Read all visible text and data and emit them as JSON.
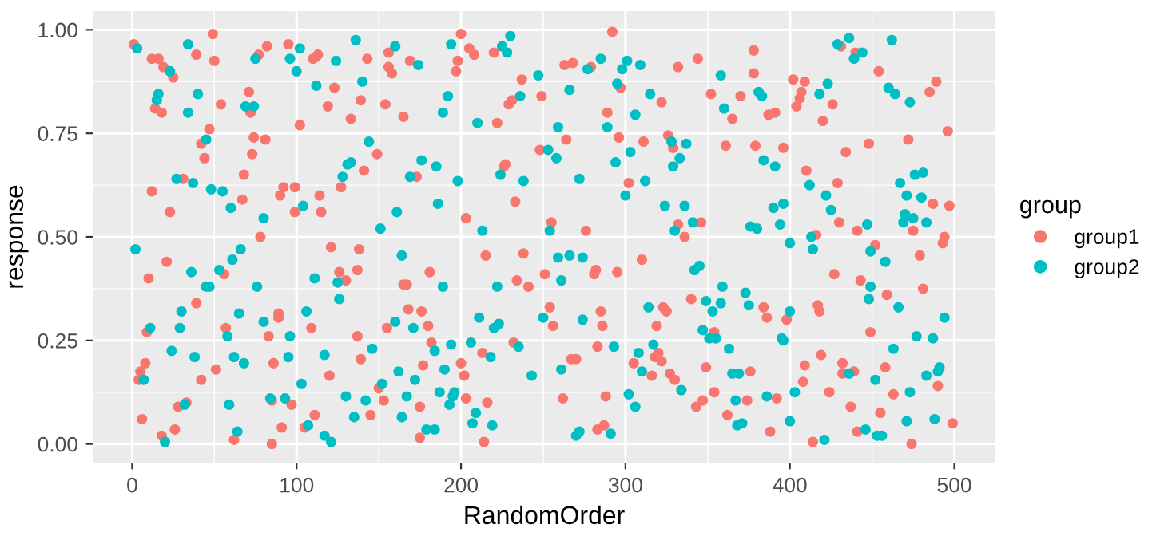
{
  "chart_data": {
    "type": "scatter",
    "xlabel": "RandomOrder",
    "ylabel": "response",
    "legend_title": "group",
    "legend": "right",
    "grid": true,
    "marker": "circle",
    "xlim": [
      -24,
      525
    ],
    "ylim": [
      -0.045,
      1.045
    ],
    "xticks": [
      0,
      100,
      200,
      300,
      400,
      500
    ],
    "yticks": [
      {
        "value": 0,
        "label": "0.00"
      },
      {
        "value": 0.25,
        "label": "0.25"
      },
      {
        "value": 0.5,
        "label": "0.50"
      },
      {
        "value": 0.75,
        "label": "0.75"
      },
      {
        "value": 1,
        "label": "1.00"
      }
    ],
    "series": [
      {
        "name": "group1",
        "color": "#f8766d",
        "x": [
          1,
          49,
          12,
          16,
          19,
          25,
          14,
          18,
          50,
          39,
          47,
          42,
          44,
          54,
          12,
          23,
          21,
          31,
          10,
          9,
          8,
          5,
          4,
          6,
          18,
          26,
          28,
          33,
          39,
          42,
          51,
          56,
          57,
          62,
          67,
          68,
          71,
          72,
          73,
          74,
          77,
          82,
          81,
          78,
          83,
          86,
          85,
          85,
          89,
          89,
          91,
          90,
          92,
          95,
          99,
          99,
          102,
          97,
          110,
          113,
          112,
          109,
          111,
          105,
          114,
          115,
          119,
          123,
          121,
          120,
          126,
          127,
          130,
          133,
          139,
          137,
          137,
          139,
          143,
          141,
          138,
          149,
          145,
          150,
          153,
          154,
          156,
          158,
          156,
          155,
          165,
          167,
          165,
          168,
          169,
          173,
          175,
          176,
          177,
          180,
          182,
          181,
          175,
          197,
          198,
          200,
          205,
          208,
          203,
          215,
          213,
          202,
          200,
          203,
          216,
          214,
          220,
          222,
          227,
          226,
          229,
          231,
          233,
          234,
          232,
          237,
          238,
          249,
          248,
          241,
          251,
          254,
          255,
          256,
          262,
          263,
          264,
          268,
          267,
          270,
          279,
          276,
          281,
          282,
          283,
          285,
          286,
          289,
          292,
          296,
          297,
          295,
          288,
          283,
          287,
          302,
          305,
          311,
          310,
          316,
          323,
          325,
          319,
          318,
          320,
          322,
          322,
          326,
          332,
          329,
          332,
          336,
          327,
          330,
          344,
          346,
          340,
          343,
          347,
          349,
          354,
          354,
          352,
          361,
          365,
          370,
          362,
          374,
          376,
          384,
          386,
          388,
          378,
          378,
          379,
          387,
          391,
          396,
          398,
          392,
          402,
          404,
          406,
          407,
          409,
          410,
          416,
          417,
          418,
          409,
          408,
          414,
          420,
          426,
          419,
          424,
          427,
          429,
          430,
          431,
          432,
          432,
          434,
          437,
          439,
          440,
          441,
          443,
          441,
          448,
          449,
          452,
          454,
          455,
          458,
          459,
          463,
          472,
          474,
          475,
          479,
          481,
          485,
          489,
          487,
          490,
          494,
          493,
          496,
          497,
          499
        ],
        "values": [
          0.965,
          0.99,
          0.93,
          0.93,
          0.91,
          0.885,
          0.81,
          0.8,
          0.925,
          0.94,
          0.76,
          0.725,
          0.69,
          0.82,
          0.61,
          0.56,
          0.44,
          0.64,
          0.4,
          0.27,
          0.195,
          0.175,
          0.155,
          0.06,
          0.02,
          0.035,
          0.09,
          0.1,
          0.34,
          0.155,
          0.18,
          0.41,
          0.28,
          0.01,
          0.59,
          0.65,
          0.85,
          0.8,
          0.7,
          0.74,
          0.94,
          0.96,
          0.735,
          0.5,
          0.26,
          0.195,
          0.105,
          0.0,
          0.305,
          0.315,
          0.04,
          0.6,
          0.62,
          0.965,
          0.62,
          0.56,
          0.77,
          0.095,
          0.93,
          0.94,
          0.935,
          0.28,
          0.07,
          0.04,
          0.6,
          0.56,
          0.815,
          0.86,
          0.475,
          0.165,
          0.415,
          0.62,
          0.395,
          0.785,
          0.83,
          0.42,
          0.26,
          0.205,
          0.93,
          0.66,
          0.47,
          0.7,
          0.07,
          0.135,
          0.105,
          0.82,
          0.91,
          0.895,
          0.945,
          0.28,
          0.385,
          0.385,
          0.79,
          0.325,
          0.925,
          0.645,
          0.09,
          0.32,
          0.19,
          0.285,
          0.245,
          0.415,
          0.015,
          0.9,
          0.925,
          0.99,
          0.955,
          0.94,
          0.545,
          0.455,
          0.22,
          0.165,
          0.195,
          0.11,
          0.1,
          0.005,
          0.945,
          0.775,
          0.675,
          0.67,
          0.82,
          0.83,
          0.585,
          0.395,
          0.245,
          0.88,
          0.46,
          0.84,
          0.71,
          0.38,
          0.41,
          0.33,
          0.535,
          0.285,
          0.11,
          0.915,
          0.735,
          0.92,
          0.205,
          0.205,
          0.91,
          0.515,
          0.41,
          0.42,
          0.235,
          0.32,
          0.285,
          0.8,
          0.995,
          0.74,
          0.86,
          0.415,
          0.115,
          0.035,
          0.045,
          0.63,
          0.195,
          0.73,
          0.445,
          0.165,
          0.33,
          0.32,
          0.285,
          0.21,
          0.22,
          0.2,
          0.825,
          0.745,
          0.91,
          0.715,
          0.53,
          0.5,
          0.17,
          0.155,
          0.93,
          0.535,
          0.35,
          0.09,
          0.105,
          0.185,
          0.27,
          0.125,
          0.845,
          0.72,
          0.785,
          0.84,
          0.07,
          0.105,
          0.175,
          0.33,
          0.305,
          0.03,
          0.95,
          0.895,
          0.72,
          0.795,
          0.8,
          0.715,
          0.3,
          0.11,
          0.88,
          0.815,
          0.835,
          0.85,
          0.875,
          0.66,
          0.505,
          0.335,
          0.32,
          0.19,
          0.15,
          0.005,
          0.78,
          0.82,
          0.215,
          0.125,
          0.41,
          0.63,
          0.535,
          0.96,
          0.195,
          0.17,
          0.705,
          0.09,
          0.175,
          0.945,
          0.515,
          0.395,
          0.03,
          0.725,
          0.27,
          0.48,
          0.9,
          0.075,
          0.185,
          0.36,
          0.12,
          0.735,
          0.0,
          0.515,
          0.455,
          0.375,
          0.85,
          0.875,
          0.58,
          0.14,
          0.5,
          0.485,
          0.755,
          0.575,
          0.05
        ]
      },
      {
        "name": "group2",
        "color": "#00bfc4",
        "x": [
          3,
          2,
          7,
          11,
          15,
          16,
          23,
          27,
          29,
          30,
          32,
          20,
          24,
          34,
          34,
          36,
          37,
          38,
          40,
          45,
          47,
          45,
          48,
          55,
          60,
          61,
          66,
          53,
          59,
          58,
          62,
          64,
          65,
          68,
          69,
          74,
          75,
          76,
          80,
          80,
          84,
          93,
          95,
          96,
          96,
          100,
          102,
          104,
          103,
          106,
          107,
          111,
          112,
          117,
          117,
          121,
          124,
          125,
          126,
          128,
          130,
          131,
          133,
          135,
          136,
          140,
          144,
          142,
          146,
          151,
          152,
          160,
          160,
          161,
          162,
          164,
          164,
          167,
          169,
          171,
          172,
          174,
          176,
          179,
          184,
          184,
          185,
          186,
          187,
          189,
          189,
          190,
          192,
          193,
          194,
          194,
          195,
          196,
          198,
          206,
          207,
          209,
          210,
          211,
          213,
          218,
          219,
          220,
          222,
          223,
          224,
          225,
          228,
          230,
          235,
          236,
          238,
          243,
          247,
          250,
          253,
          254,
          258,
          259,
          259,
          261,
          261,
          266,
          266,
          272,
          274,
          274,
          270,
          272,
          277,
          285,
          289,
          291,
          293,
          294,
          295,
          298,
          301,
          300,
          303,
          302,
          306,
          306,
          308,
          309,
          310,
          312,
          314,
          315,
          317,
          324,
          328,
          329,
          330,
          333,
          334,
          336,
          337,
          341,
          342,
          345,
          347,
          349,
          351,
          353,
          355,
          358,
          359,
          358,
          360,
          363,
          365,
          367,
          368,
          369,
          371,
          373,
          375,
          376,
          380,
          381,
          383,
          384,
          386,
          390,
          391,
          394,
          395,
          396,
          396,
          400,
          400,
          400,
          403,
          412,
          413,
          414,
          418,
          423,
          422,
          425,
          421,
          429,
          436,
          436,
          439,
          444,
          446,
          447,
          448,
          449,
          449,
          452,
          453,
          456,
          458,
          460,
          462,
          463,
          464,
          466,
          467,
          471,
          470,
          469,
          473,
          471,
          473,
          475,
          476,
          477,
          481,
          480,
          483,
          483,
          487,
          488,
          490,
          491,
          494
        ],
        "values": [
          0.955,
          0.47,
          0.155,
          0.28,
          0.83,
          0.845,
          0.9,
          0.64,
          0.28,
          0.32,
          0.095,
          0.005,
          0.225,
          0.965,
          0.8,
          0.415,
          0.63,
          0.21,
          0.845,
          0.38,
          0.38,
          0.735,
          0.615,
          0.61,
          0.57,
          0.445,
          0.47,
          0.42,
          0.095,
          0.26,
          0.21,
          0.03,
          0.315,
          0.195,
          0.815,
          0.815,
          0.93,
          0.38,
          0.545,
          0.295,
          0.11,
          0.11,
          0.21,
          0.26,
          0.93,
          0.9,
          0.955,
          0.575,
          0.145,
          0.32,
          0.045,
          0.4,
          0.865,
          0.215,
          0.02,
          0.005,
          0.925,
          0.39,
          0.35,
          0.645,
          0.115,
          0.675,
          0.68,
          0.065,
          0.975,
          0.875,
          0.73,
          0.105,
          0.23,
          0.52,
          0.145,
          0.96,
          0.295,
          0.56,
          0.175,
          0.065,
          0.455,
          0.115,
          0.645,
          0.28,
          0.155,
          0.915,
          0.685,
          0.035,
          0.035,
          0.225,
          0.67,
          0.58,
          0.125,
          0.38,
          0.8,
          0.18,
          0.84,
          0.095,
          0.965,
          0.24,
          0.115,
          0.125,
          0.635,
          0.245,
          0.05,
          0.075,
          0.775,
          0.305,
          0.515,
          0.21,
          0.045,
          0.28,
          0.38,
          0.29,
          0.65,
          0.96,
          0.945,
          0.985,
          0.235,
          0.84,
          0.635,
          0.165,
          0.89,
          0.305,
          0.71,
          0.515,
          0.69,
          0.765,
          0.45,
          0.395,
          0.18,
          0.455,
          0.855,
          0.64,
          0.3,
          0.45,
          0.02,
          0.03,
          0.905,
          0.93,
          0.765,
          0.025,
          0.235,
          0.68,
          0.87,
          0.905,
          0.925,
          0.6,
          0.705,
          0.12,
          0.09,
          0.795,
          0.22,
          0.915,
          0.175,
          0.635,
          0.33,
          0.845,
          0.24,
          0.575,
          0.73,
          0.67,
          0.515,
          0.69,
          0.13,
          0.575,
          0.725,
          0.535,
          0.42,
          0.43,
          0.275,
          0.345,
          0.255,
          0.32,
          0.255,
          0.34,
          0.38,
          0.89,
          0.81,
          0.23,
          0.17,
          0.105,
          0.045,
          0.17,
          0.05,
          0.365,
          0.335,
          0.525,
          0.52,
          0.85,
          0.84,
          0.685,
          0.115,
          0.57,
          0.67,
          0.53,
          0.255,
          0.25,
          0.58,
          0.485,
          0.32,
          0.055,
          0.125,
          0.625,
          0.5,
          0.47,
          0.845,
          0.87,
          0.6,
          0.565,
          0.01,
          0.965,
          0.98,
          0.17,
          0.93,
          0.945,
          0.035,
          0.53,
          0.35,
          0.38,
          0.465,
          0.155,
          0.02,
          0.02,
          0.44,
          0.86,
          0.975,
          0.23,
          0.845,
          0.33,
          0.63,
          0.6,
          0.555,
          0.535,
          0.825,
          0.055,
          0.125,
          0.545,
          0.65,
          0.26,
          0.655,
          0.595,
          0.535,
          0.165,
          0.255,
          0.06,
          0.175,
          0.185,
          0.305
        ]
      }
    ]
  }
}
